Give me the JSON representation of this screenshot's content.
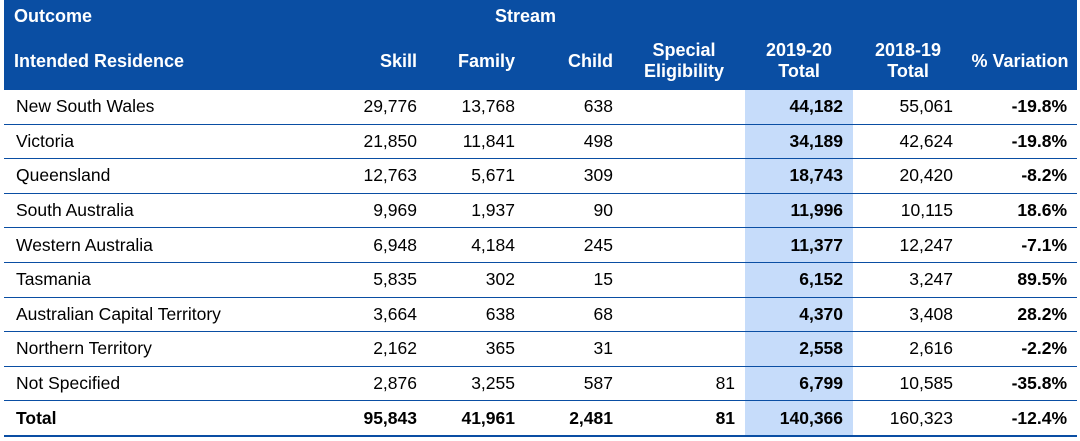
{
  "header": {
    "outcome": "Outcome",
    "stream": "Stream",
    "intended_residence": "Intended Residence",
    "col_skill": "Skill",
    "col_family": "Family",
    "col_child": "Child",
    "col_special": "Special Eligibility",
    "col_total_2019": "2019-20 Total",
    "col_total_2018": "2018-19 Total",
    "col_variation": "% Variation"
  },
  "rows": [
    {
      "name": "New South Wales",
      "skill": "29,776",
      "family": "13,768",
      "child": "638",
      "special": "",
      "total2019": "44,182",
      "total2018": "55,061",
      "variation": "-19.8%"
    },
    {
      "name": "Victoria",
      "skill": "21,850",
      "family": "11,841",
      "child": "498",
      "special": "",
      "total2019": "34,189",
      "total2018": "42,624",
      "variation": "-19.8%"
    },
    {
      "name": "Queensland",
      "skill": "12,763",
      "family": "5,671",
      "child": "309",
      "special": "",
      "total2019": "18,743",
      "total2018": "20,420",
      "variation": "-8.2%"
    },
    {
      "name": "South Australia",
      "skill": "9,969",
      "family": "1,937",
      "child": "90",
      "special": "",
      "total2019": "11,996",
      "total2018": "10,115",
      "variation": "18.6%"
    },
    {
      "name": "Western Australia",
      "skill": "6,948",
      "family": "4,184",
      "child": "245",
      "special": "",
      "total2019": "11,377",
      "total2018": "12,247",
      "variation": "-7.1%"
    },
    {
      "name": "Tasmania",
      "skill": "5,835",
      "family": "302",
      "child": "15",
      "special": "",
      "total2019": "6,152",
      "total2018": "3,247",
      "variation": "89.5%"
    },
    {
      "name": "Australian Capital Territory",
      "skill": "3,664",
      "family": "638",
      "child": "68",
      "special": "",
      "total2019": "4,370",
      "total2018": "3,408",
      "variation": "28.2%"
    },
    {
      "name": "Northern Territory",
      "skill": "2,162",
      "family": "365",
      "child": "31",
      "special": "",
      "total2019": "2,558",
      "total2018": "2,616",
      "variation": "-2.2%"
    },
    {
      "name": "Not Specified",
      "skill": "2,876",
      "family": "3,255",
      "child": "587",
      "special": "81",
      "total2019": "6,799",
      "total2018": "10,585",
      "variation": "-35.8%"
    }
  ],
  "total": {
    "name": "Total",
    "skill": "95,843",
    "family": "41,961",
    "child": "2,481",
    "special": "81",
    "total2019": "140,366",
    "total2018": "160,323",
    "variation": "-12.4%"
  },
  "colors": {
    "header_bg": "#0a4ea3",
    "highlight": "#c6dcfa"
  }
}
